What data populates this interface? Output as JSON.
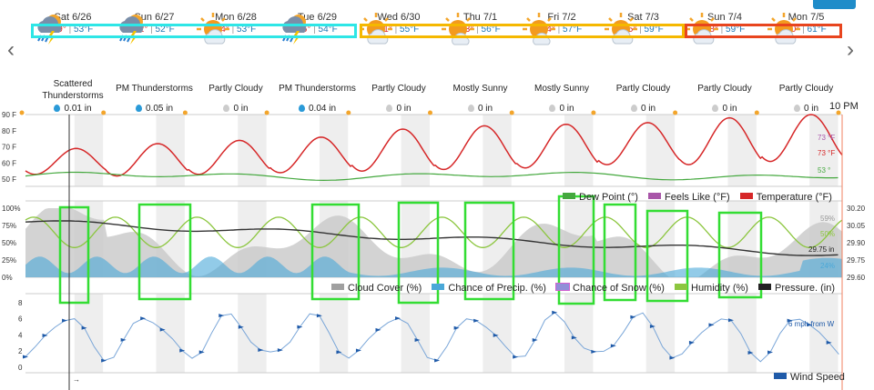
{
  "nav": {
    "prev": "‹",
    "next": "›"
  },
  "time_label": "10 PM",
  "days": [
    {
      "date": "Sat 6/26",
      "hi": "69°",
      "lo": "53°F",
      "icon": "thunderstorm-icon",
      "condition": "Scattered Thunderstorms",
      "precip": "0.01 in",
      "rain": true
    },
    {
      "date": "Sun 6/27",
      "hi": "72°",
      "lo": "52°F",
      "icon": "thunderstorm-icon",
      "condition": "PM Thunderstorms",
      "precip": "0.05 in",
      "rain": true
    },
    {
      "date": "Mon 6/28",
      "hi": "74°",
      "lo": "53°F",
      "icon": "partly-cloudy-icon",
      "condition": "Partly Cloudy",
      "precip": "0 in",
      "rain": false
    },
    {
      "date": "Tue 6/29",
      "hi": "76°",
      "lo": "54°F",
      "icon": "thunderstorm-icon",
      "condition": "PM Thunderstorms",
      "precip": "0.04 in",
      "rain": true
    },
    {
      "date": "Wed 6/30",
      "hi": "81°",
      "lo": "55°F",
      "icon": "partly-cloudy-icon",
      "condition": "Partly Cloudy",
      "precip": "0 in",
      "rain": false
    },
    {
      "date": "Thu 7/1",
      "hi": "83°",
      "lo": "56°F",
      "icon": "mostly-sunny-icon",
      "condition": "Mostly Sunny",
      "precip": "0 in",
      "rain": false
    },
    {
      "date": "Fri 7/2",
      "hi": "84°",
      "lo": "57°F",
      "icon": "mostly-sunny-icon",
      "condition": "Mostly Sunny",
      "precip": "0 in",
      "rain": false
    },
    {
      "date": "Sat 7/3",
      "hi": "85°",
      "lo": "59°F",
      "icon": "partly-cloudy-icon",
      "condition": "Partly Cloudy",
      "precip": "0 in",
      "rain": false
    },
    {
      "date": "Sun 7/4",
      "hi": "88°",
      "lo": "59°F",
      "icon": "partly-cloudy-icon",
      "condition": "Partly Cloudy",
      "precip": "0 in",
      "rain": false
    },
    {
      "date": "Mon 7/5",
      "hi": "90°",
      "lo": "61°F",
      "icon": "partly-cloudy-icon",
      "condition": "Partly Cloudy",
      "precip": "0 in",
      "rain": false
    }
  ],
  "colors": {
    "temperature": "#d62728",
    "dew_point": "#44a83e",
    "feels_like": "#a855a8",
    "cloud_cover": "#a0a0a0",
    "precip": "#4aa8d8",
    "snow": "#8f8fd8",
    "humidity": "#8cc63f",
    "pressure": "#333333",
    "wind": "#1f5aa8",
    "cyan_box": "#2ee6e6",
    "orange_box": "#f5b800",
    "red_box": "#e8451e",
    "highlight": "#33dd33"
  },
  "chart_data": [
    {
      "type": "line",
      "x_range_days": [
        0,
        10
      ],
      "ylim": [
        45,
        90
      ],
      "yticks": [
        "90 F",
        "80 F",
        "70 F",
        "60 F",
        "50 F"
      ],
      "series": [
        {
          "name": "Temperature (°F)",
          "daily_high": [
            69,
            72,
            74,
            76,
            81,
            83,
            84,
            85,
            88,
            90
          ],
          "daily_low": [
            53,
            52,
            53,
            54,
            55,
            56,
            57,
            59,
            59,
            61
          ],
          "end_label": "73 °F"
        },
        {
          "name": "Feels Like (°F)",
          "end_label": "73 °F"
        },
        {
          "name": "Dew Point (°)",
          "end_label": "53 °",
          "approx_value": 52
        }
      ],
      "legend": [
        "Dew Point (°)",
        "Feels Like (°F)",
        "Temperature (°F)"
      ]
    },
    {
      "type": "line",
      "ylim_left": [
        0,
        100
      ],
      "yticks_left": [
        "100%",
        "75%",
        "50%",
        "25%",
        "0%"
      ],
      "ylim_right": [
        29.6,
        30.2
      ],
      "yticks_right": [
        "30.20",
        "30.05",
        "29.90",
        "29.75",
        "29.60"
      ],
      "end_labels": {
        "cloud": "59%",
        "humidity": "50%",
        "pressure": "29.75 in",
        "precip": "24%"
      },
      "legend": [
        "Cloud Cover (%)",
        "Chance of Precip. (%)",
        "Chance of Snow (%)",
        "Humidity (%)",
        "Pressure. (in)"
      ]
    },
    {
      "type": "line",
      "ylim": [
        0,
        9
      ],
      "yticks": [
        "8",
        "6",
        "4",
        "2",
        "0"
      ],
      "end_label": "6 mph from W",
      "legend": [
        "Wind Speed"
      ],
      "arrow_label": "→"
    }
  ],
  "legends": {
    "temp": [
      "Dew Point (°)",
      "Feels Like (°F)",
      "Temperature (°F)"
    ],
    "mid": [
      "Cloud Cover (%)",
      "Chance of Precip. (%)",
      "Chance of Snow (%)",
      "Humidity (%)",
      "Pressure. (in)"
    ],
    "wind": "Wind Speed"
  }
}
